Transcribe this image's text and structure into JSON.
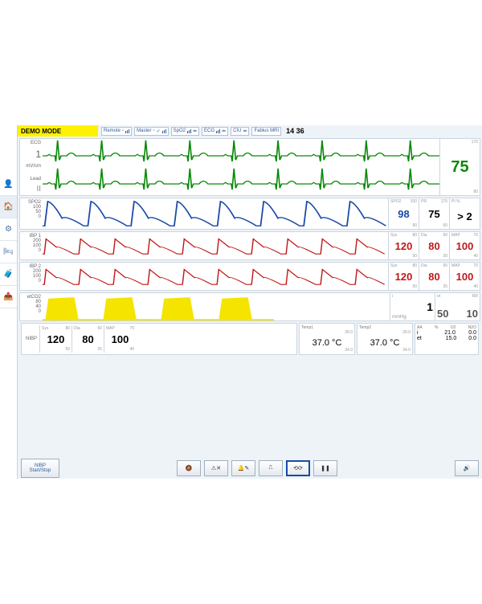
{
  "colors": {
    "ecg": "#0a8a0a",
    "spo2": "#1a4aa8",
    "ibp": "#c01818",
    "etco2": "#f4e400",
    "accent": "#2a5aa0",
    "bg": "#eef3f8",
    "panel": "#ffffff",
    "border": "#cbd6e1"
  },
  "topbar": {
    "demo_mode": "DEMO MODE",
    "chips": [
      {
        "label": "Remote",
        "bars": true
      },
      {
        "label": "Master",
        "bars": true,
        "check": true
      },
      {
        "label": "SpO2",
        "bars": true
      },
      {
        "label": "ECG",
        "bars": true
      },
      {
        "label": "CIU",
        "bars": true
      },
      {
        "label": "Fabius MRI",
        "bars": false
      }
    ],
    "time": "14 36"
  },
  "rail": [
    {
      "name": "patient-icon",
      "glyph": "👤"
    },
    {
      "name": "home-icon",
      "glyph": "🏠",
      "selected": true
    },
    {
      "name": "settings-icon",
      "glyph": "⚙"
    },
    {
      "name": "bed-icon",
      "glyph": "🛏"
    },
    {
      "name": "case-icon",
      "glyph": "🧳"
    },
    {
      "name": "export-icon",
      "glyph": "📤"
    }
  ],
  "ecg": {
    "label": "ECG",
    "gain": "1",
    "unit": "mV/cm",
    "lead_lbl": "Lead",
    "lead": "II",
    "value": "75",
    "hi": "170",
    "lo": "80",
    "beats": 9
  },
  "spo2": {
    "label": "SPO2",
    "ticks": [
      "100",
      "50",
      "0"
    ],
    "cols": [
      {
        "hd": "SPO2",
        "val": "98",
        "hi": "100",
        "lo": "90",
        "class": "blue"
      },
      {
        "hd": "PR",
        "val": "75",
        "hi": "170",
        "lo": "60",
        "class": "black"
      },
      {
        "hd": "PI %",
        "val": "> 2",
        "hi": "",
        "lo": "",
        "class": "black"
      }
    ],
    "beats": 8
  },
  "ibp1": {
    "label": "IBP 1",
    "unit": "mmHg",
    "ticks": [
      "200",
      "150",
      "100",
      "50",
      "0"
    ],
    "cols": [
      {
        "hd": "Sys",
        "val": "120",
        "hi": "80",
        "lo": "50",
        "class": "red"
      },
      {
        "hd": "Dia",
        "val": "80",
        "hi": "60",
        "lo": "30",
        "class": "red"
      },
      {
        "hd": "MAP",
        "val": "100",
        "hi": "70",
        "lo": "40",
        "class": "red"
      }
    ],
    "beats": 10
  },
  "ibp2": {
    "label": "IBP 2",
    "unit": "mmHg",
    "ticks": [
      "200",
      "150",
      "100",
      "50",
      "0"
    ],
    "cols": [
      {
        "hd": "Sys",
        "val": "120",
        "hi": "80",
        "lo": "50",
        "class": "red"
      },
      {
        "hd": "Dia",
        "val": "80",
        "hi": "65",
        "lo": "25",
        "class": "red"
      },
      {
        "hd": "MAP",
        "val": "100",
        "hi": "70",
        "lo": "40",
        "class": "red"
      }
    ],
    "beats": 10
  },
  "etco2": {
    "label": "etCO2",
    "ticks": [
      "80",
      "60",
      "40",
      "20",
      "0"
    ],
    "cols": [
      {
        "hd": "i",
        "val": "1",
        "class": "black",
        "wide": true
      },
      {
        "hd_l": "et",
        "hd_r": "RR",
        "val_l": "50",
        "val_r": "10",
        "class": "black",
        "dual": true
      }
    ],
    "unit": "mmHg",
    "breaths": 4
  },
  "nibp": {
    "label": "NIBP",
    "cols": [
      {
        "hd": "Sys",
        "val": "120",
        "hi": "80",
        "lo": "50"
      },
      {
        "hd": "Dia",
        "val": "80",
        "hi": "60",
        "lo": "25"
      },
      {
        "hd": "MAP",
        "val": "100",
        "hi": "70",
        "lo": "40"
      }
    ]
  },
  "temp1": {
    "label": "Temp1",
    "val": "37.0 °C",
    "hi": "39.0",
    "lo": "34.0"
  },
  "temp2": {
    "label": "Temp2",
    "val": "37.0 °C",
    "hi": "39.0",
    "lo": "34.0"
  },
  "gas": {
    "hdr": [
      "AA",
      "%",
      "O2",
      "N2O"
    ],
    "rows": [
      {
        "l": "i",
        "o2": "21.0",
        "n2o": "0.0"
      },
      {
        "l": "et",
        "o2": "15.0",
        "n2o": "0.0"
      }
    ]
  },
  "toolbar": {
    "nibp_btn": "NIBP\nStart/Stop",
    "icons": [
      "alarm-silence",
      "alarm-suspend",
      "alarm-config",
      "trend",
      "loop",
      "pause"
    ],
    "selected": "loop",
    "speaker": "speaker"
  }
}
